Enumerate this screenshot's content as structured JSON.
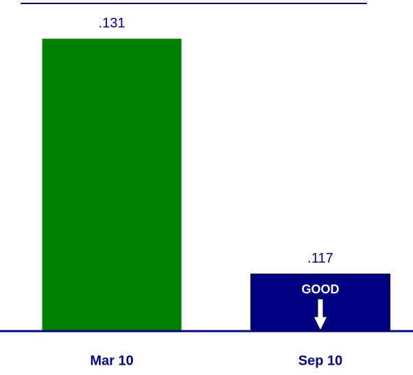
{
  "chart_data": {
    "type": "bar",
    "categories": [
      "Mar 10",
      "Sep 10"
    ],
    "values": [
      0.131,
      0.117
    ],
    "value_labels": [
      ".131",
      ".117"
    ],
    "colors": [
      "#008000",
      "#000080"
    ],
    "ylim": [
      0.1136,
      0.1331
    ],
    "annotation": "GOOD"
  }
}
